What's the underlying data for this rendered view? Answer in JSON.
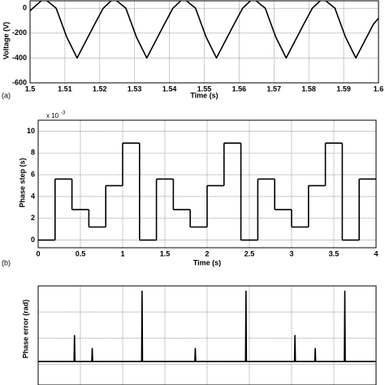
{
  "chart_data": [
    {
      "type": "line",
      "panel_label": "(a)",
      "xlabel": "Time (s)",
      "ylabel": "Voltage (V)",
      "color": "#000000",
      "grid": true,
      "xlim": [
        1.5,
        1.6
      ],
      "xticks": [
        1.5,
        1.51,
        1.52,
        1.53,
        1.54,
        1.55,
        1.56,
        1.57,
        1.58,
        1.59,
        1.6
      ],
      "ylim": [
        -600,
        60
      ],
      "yticks": [
        -600,
        -400,
        -200,
        0
      ],
      "x": [
        1.5,
        1.504,
        1.5075,
        1.5105,
        1.5135,
        1.5185,
        1.521,
        1.524,
        1.5275,
        1.5305,
        1.5335,
        1.5385,
        1.541,
        1.544,
        1.5475,
        1.5505,
        1.5535,
        1.5585,
        1.561,
        1.564,
        1.5675,
        1.5705,
        1.5735,
        1.5785,
        1.581,
        1.584,
        1.5875,
        1.5905,
        1.5935,
        1.5985,
        1.6
      ],
      "values": [
        -20,
        80,
        0,
        -230,
        -400,
        -130,
        0,
        80,
        0,
        -230,
        -400,
        -130,
        0,
        80,
        0,
        -230,
        -400,
        -130,
        0,
        80,
        0,
        -230,
        -400,
        -130,
        0,
        80,
        0,
        -230,
        -400,
        -130,
        -80
      ]
    },
    {
      "type": "step",
      "panel_label": "(b)",
      "xlabel": "Time (s)",
      "ylabel": "Phase step (s)",
      "multiplier": "x 10",
      "multiplier_exponent": "-3",
      "color": "#000000",
      "grid": true,
      "xlim": [
        0,
        4
      ],
      "xticks": [
        0,
        0.5,
        1,
        1.5,
        2,
        2.5,
        3,
        3.5,
        4
      ],
      "ylim": [
        -0.7,
        11
      ],
      "yticks": [
        0,
        2,
        4,
        6,
        8,
        10
      ],
      "x": [
        0,
        0.2,
        0.4,
        0.6,
        0.8,
        1.0,
        1.2,
        1.4,
        1.6,
        1.8,
        2.0,
        2.2,
        2.4,
        2.6,
        2.8,
        3.0,
        3.2,
        3.4,
        3.6,
        3.8
      ],
      "values": [
        0,
        5.6,
        2.8,
        1.2,
        5,
        8.9,
        0,
        5.6,
        2.8,
        1.2,
        5,
        8.9,
        0,
        5.6,
        2.8,
        1.2,
        5,
        8.9,
        0,
        5.6
      ]
    },
    {
      "type": "line",
      "ylabel": "Phase error (rad)",
      "color": "#000000",
      "grid": true,
      "xlim": [
        0,
        4
      ],
      "xgrid": [
        0.5,
        1,
        1.5,
        2,
        2.5,
        3,
        3.5
      ],
      "ylim": [
        -0.8,
        3
      ],
      "ygrid": [
        0,
        1,
        2
      ],
      "x": [
        0,
        0.425,
        0.43,
        0.435,
        0.635,
        0.64,
        0.645,
        1.225,
        1.23,
        1.235,
        1.855,
        1.86,
        1.865,
        2.455,
        2.46,
        2.465,
        3.035,
        3.04,
        3.045,
        3.275,
        3.28,
        3.285,
        3.625,
        3.63,
        3.635,
        4
      ],
      "values": [
        0.1,
        0.1,
        1.1,
        0.1,
        0.1,
        0.6,
        0.1,
        0.1,
        2.8,
        0.1,
        0.1,
        0.6,
        0.1,
        0.1,
        2.8,
        0.1,
        0.1,
        1.1,
        0.1,
        0.1,
        0.6,
        0.1,
        0.1,
        2.8,
        0.1,
        0.1
      ]
    }
  ]
}
